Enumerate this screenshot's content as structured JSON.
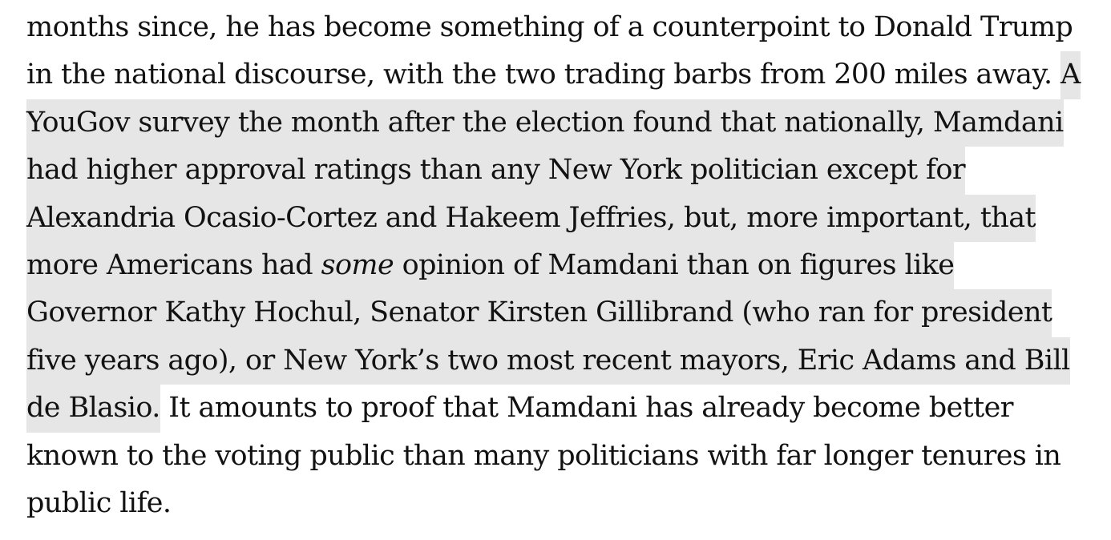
{
  "article": {
    "lines": [
      {
        "plain": "months since, he has become something of a counterpoint to Donald Trump"
      },
      {
        "plain": "in the national discourse, with the two trading barbs from 200 miles away. ",
        "highlight": "A"
      },
      {
        "highlight": "YouGov survey the month after the election found that nationally, Mamdani"
      },
      {
        "highlight": "had higher approval ratings than any New York politician except for"
      },
      {
        "highlight": "Alexandria Ocasio-Cortez and Hakeem Jeffries, but, more important, that"
      },
      {
        "highlight_before": "more Americans had ",
        "highlight_em": "some",
        "highlight_after": " opinion of Mamdani than on figures like"
      },
      {
        "highlight": "Governor Kathy Hochul, Senator Kirsten Gillibrand (who ran for president"
      },
      {
        "highlight": "five years ago), or New York’s two most recent mayors, Eric Adams and Bill"
      },
      {
        "highlight": "de Blasio.",
        "plain_after": " It amounts to proof that Mamdani has already become better"
      },
      {
        "plain": "known to the voting public than many politicians with far longer tenures in"
      },
      {
        "plain": "public life."
      }
    ]
  }
}
